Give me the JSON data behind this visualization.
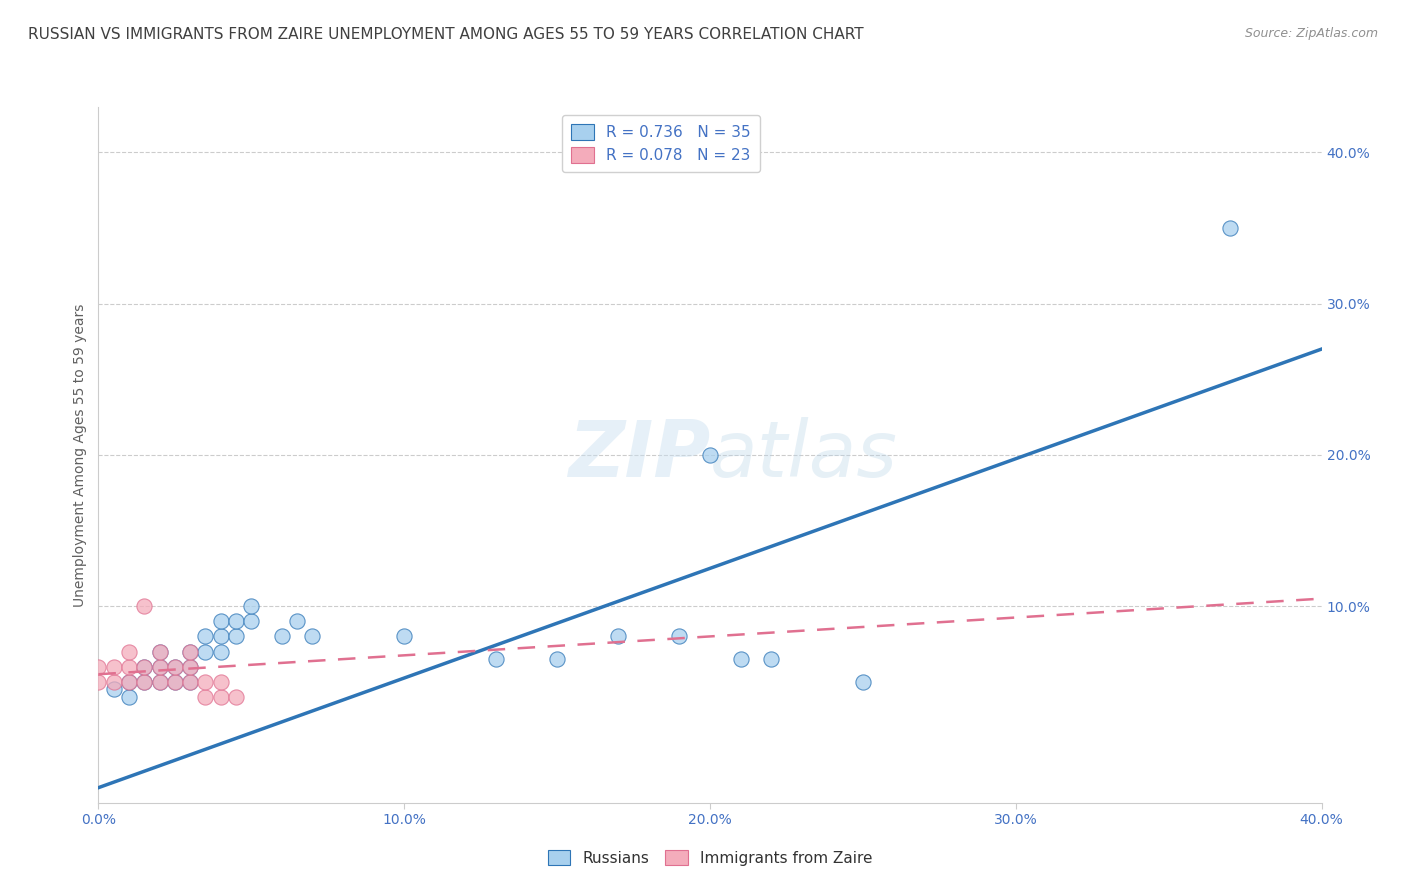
{
  "title": "RUSSIAN VS IMMIGRANTS FROM ZAIRE UNEMPLOYMENT AMONG AGES 55 TO 59 YEARS CORRELATION CHART",
  "source": "Source: ZipAtlas.com",
  "ylabel": "Unemployment Among Ages 55 to 59 years",
  "xlim": [
    0.0,
    0.4
  ],
  "ylim": [
    -0.03,
    0.43
  ],
  "xticks": [
    0.0,
    0.1,
    0.2,
    0.3,
    0.4
  ],
  "xticklabels": [
    "0.0%",
    "10.0%",
    "20.0%",
    "30.0%",
    "40.0%"
  ],
  "right_yticks": [
    0.1,
    0.2,
    0.3,
    0.4
  ],
  "right_yticklabels": [
    "10.0%",
    "20.0%",
    "30.0%",
    "40.0%"
  ],
  "russian_R": 0.736,
  "russian_N": 35,
  "zaire_R": 0.078,
  "zaire_N": 23,
  "russian_color": "#A8D0EE",
  "zaire_color": "#F4ACBB",
  "regression_blue": "#2E75B6",
  "regression_pink": "#E07090",
  "watermark": "ZIPatlas",
  "background_color": "#FFFFFF",
  "title_color": "#404040",
  "title_fontsize": 11,
  "axis_label_color": "#606060",
  "tick_color": "#4472C4",
  "tick_fontsize": 10,
  "russian_x": [
    0.005,
    0.01,
    0.01,
    0.015,
    0.015,
    0.02,
    0.02,
    0.02,
    0.025,
    0.025,
    0.03,
    0.03,
    0.03,
    0.035,
    0.035,
    0.04,
    0.04,
    0.04,
    0.045,
    0.045,
    0.05,
    0.05,
    0.06,
    0.065,
    0.07,
    0.1,
    0.13,
    0.15,
    0.17,
    0.19,
    0.2,
    0.21,
    0.22,
    0.25,
    0.37
  ],
  "russian_y": [
    0.045,
    0.04,
    0.05,
    0.05,
    0.06,
    0.05,
    0.06,
    0.07,
    0.05,
    0.06,
    0.05,
    0.06,
    0.07,
    0.07,
    0.08,
    0.07,
    0.08,
    0.09,
    0.08,
    0.09,
    0.09,
    0.1,
    0.08,
    0.09,
    0.08,
    0.08,
    0.065,
    0.065,
    0.08,
    0.08,
    0.2,
    0.065,
    0.065,
    0.05,
    0.35
  ],
  "zaire_x": [
    0.0,
    0.0,
    0.005,
    0.005,
    0.01,
    0.01,
    0.01,
    0.015,
    0.015,
    0.015,
    0.02,
    0.02,
    0.02,
    0.025,
    0.025,
    0.03,
    0.03,
    0.03,
    0.035,
    0.035,
    0.04,
    0.04,
    0.045
  ],
  "zaire_y": [
    0.05,
    0.06,
    0.05,
    0.06,
    0.05,
    0.06,
    0.07,
    0.05,
    0.06,
    0.1,
    0.05,
    0.06,
    0.07,
    0.05,
    0.06,
    0.05,
    0.06,
    0.07,
    0.04,
    0.05,
    0.04,
    0.05,
    0.04
  ],
  "blue_line_x0": 0.0,
  "blue_line_y0": -0.02,
  "blue_line_x1": 0.4,
  "blue_line_y1": 0.27,
  "pink_line_x0": 0.0,
  "pink_line_y0": 0.055,
  "pink_line_x1": 0.4,
  "pink_line_y1": 0.105
}
